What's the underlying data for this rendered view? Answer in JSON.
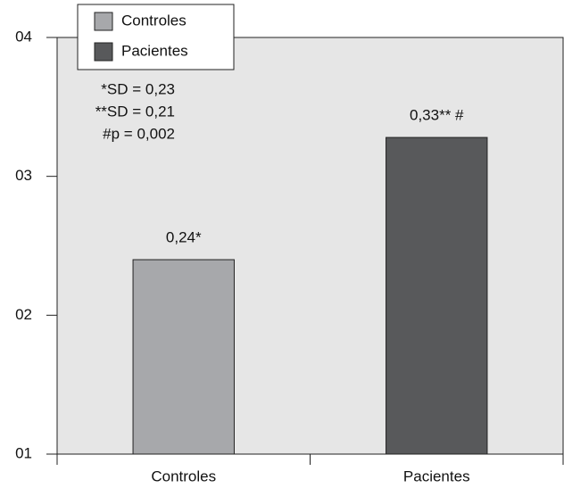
{
  "chart_data": {
    "type": "bar",
    "categories": [
      "Controles",
      "Pacientes"
    ],
    "series": [
      {
        "name": "Controles",
        "color": "#a7a8ab",
        "values": [
          0.24,
          null
        ],
        "value_labels": [
          "0,24*",
          null
        ]
      },
      {
        "name": "Pacientes",
        "color": "#58595b",
        "values": [
          null,
          0.328
        ],
        "value_labels": [
          null,
          "0,33** #"
        ]
      }
    ],
    "ylim": [
      0.1,
      0.4
    ],
    "yticks": [
      {
        "value": 0.1,
        "label": "01"
      },
      {
        "value": 0.2,
        "label": "02"
      },
      {
        "value": 0.3,
        "label": "03"
      },
      {
        "value": 0.4,
        "label": "04"
      }
    ],
    "annotations": [
      "*SD = 0,23",
      "**SD = 0,21",
      "#p = 0,002"
    ],
    "plot_background": "#e6e6e6"
  }
}
